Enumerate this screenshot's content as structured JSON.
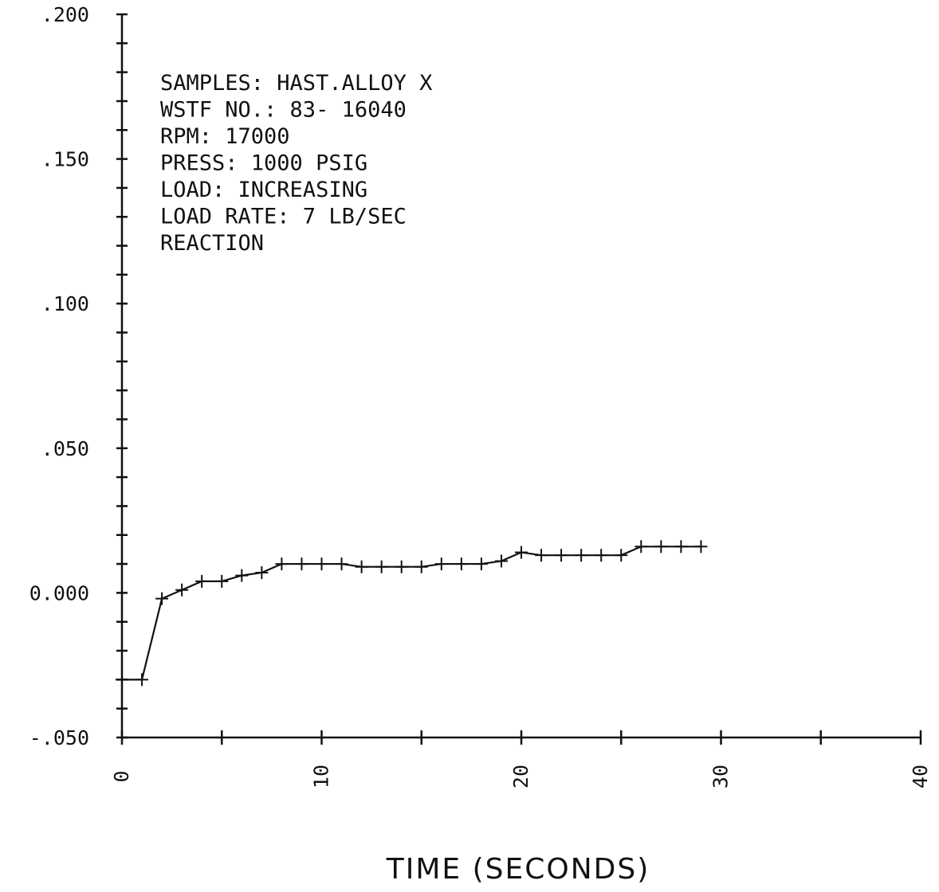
{
  "chart_data": {
    "type": "line",
    "title": "",
    "xlabel": "TIME (SECONDS)",
    "ylabel": "",
    "xlim": [
      0,
      40
    ],
    "ylim": [
      -0.05,
      0.2
    ],
    "x_ticks": [
      0,
      10,
      20,
      30,
      40
    ],
    "x_tick_labels": [
      "0",
      "10",
      "20",
      "30",
      "40"
    ],
    "y_ticks": [
      -0.05,
      0,
      0.05,
      0.1,
      0.15,
      0.2
    ],
    "y_tick_labels": [
      "-.050",
      "0.000",
      ".050",
      ".100",
      ".150",
      ".200"
    ],
    "x_minor_step": 1,
    "x_major_step": 5,
    "y_minor_step": 0.01,
    "grid": false,
    "annotations": [
      "SAMPLES: HAST.ALLOY X",
      "WSTF NO.: 83- 16040",
      "RPM: 17000",
      "PRESS: 1000 PSIG",
      "LOAD: INCREASING",
      "LOAD RATE: 7 LB/SEC",
      "REACTION"
    ],
    "series": [
      {
        "x": [
          0,
          1,
          2,
          3,
          4,
          5,
          6,
          7,
          8,
          9,
          10,
          11,
          12,
          13,
          14,
          15,
          16,
          17,
          18,
          19,
          20,
          21,
          22,
          23,
          24,
          25,
          26,
          27,
          28,
          29
        ],
        "y": [
          -0.03,
          -0.03,
          -0.002,
          0.001,
          0.004,
          0.004,
          0.006,
          0.007,
          0.01,
          0.01,
          0.01,
          0.01,
          0.009,
          0.009,
          0.009,
          0.009,
          0.01,
          0.01,
          0.01,
          0.011,
          0.014,
          0.013,
          0.013,
          0.013,
          0.013,
          0.013,
          0.016,
          0.016,
          0.016,
          0.016
        ]
      }
    ]
  }
}
